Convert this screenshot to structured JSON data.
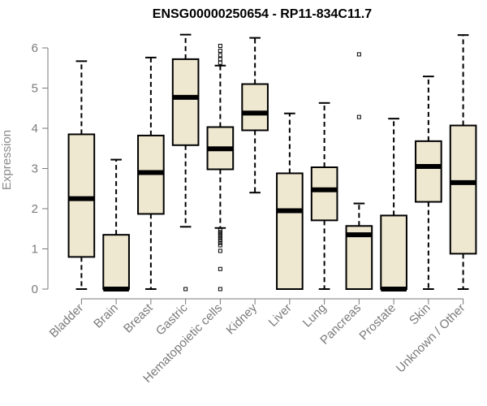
{
  "chart_data": {
    "type": "boxplot",
    "title": "ENSG00000250654 - RP11-834C11.7",
    "xlabel": "",
    "ylabel": "Expression",
    "ylim": [
      0,
      6.3
    ],
    "yticks": [
      0,
      1,
      2,
      3,
      4,
      5,
      6
    ],
    "categories": [
      "Bladder",
      "Brain",
      "Breast",
      "Gastric",
      "Hematopoietic cells",
      "Kidney",
      "Liver",
      "Lung",
      "Pancreas",
      "Prostate",
      "Skin",
      "Unknown / Other"
    ],
    "series": [
      {
        "name": "Bladder",
        "min": 0,
        "q1": 0.8,
        "median": 2.25,
        "q3": 3.85,
        "max": 5.67,
        "outliers": []
      },
      {
        "name": "Brain",
        "min": 0,
        "q1": 0,
        "median": 0,
        "q3": 1.35,
        "max": 3.22,
        "outliers": []
      },
      {
        "name": "Breast",
        "min": 0,
        "q1": 1.87,
        "median": 2.9,
        "q3": 3.82,
        "max": 5.76,
        "outliers": []
      },
      {
        "name": "Gastric",
        "min": 1.55,
        "q1": 3.58,
        "median": 4.77,
        "q3": 5.72,
        "max": 6.33,
        "outliers": [
          0
        ]
      },
      {
        "name": "Hematopoietic cells",
        "min": 1.52,
        "q1": 2.98,
        "median": 3.49,
        "q3": 4.03,
        "max": 5.56,
        "outliers": [
          6.05,
          5.93,
          5.82,
          5.72,
          5.63,
          1.47,
          1.42,
          1.37,
          1.32,
          1.27,
          1.21,
          1.15,
          1.09,
          0.95,
          0.5,
          0.0
        ]
      },
      {
        "name": "Kidney",
        "min": 2.4,
        "q1": 3.95,
        "median": 4.38,
        "q3": 5.1,
        "max": 6.25,
        "outliers": []
      },
      {
        "name": "Liver",
        "min": 0,
        "q1": 0,
        "median": 1.95,
        "q3": 2.88,
        "max": 4.37,
        "outliers": []
      },
      {
        "name": "Lung",
        "min": 0,
        "q1": 1.71,
        "median": 2.47,
        "q3": 3.03,
        "max": 4.63,
        "outliers": []
      },
      {
        "name": "Pancreas",
        "min": 0,
        "q1": 0,
        "median": 1.35,
        "q3": 1.57,
        "max": 2.13,
        "outliers": [
          5.84,
          4.28
        ]
      },
      {
        "name": "Prostate",
        "min": 0,
        "q1": 0,
        "median": 0,
        "q3": 1.83,
        "max": 4.24,
        "outliers": []
      },
      {
        "name": "Skin",
        "min": 0,
        "q1": 2.17,
        "median": 3.05,
        "q3": 3.68,
        "max": 5.29,
        "outliers": []
      },
      {
        "name": "Unknown / Other",
        "min": 0,
        "q1": 0.88,
        "median": 2.65,
        "q3": 4.07,
        "max": 6.32,
        "outliers": []
      }
    ],
    "colors": {
      "box_fill": "#efe8d1",
      "stroke": "#000000",
      "axis": "#7a7a7a"
    }
  }
}
